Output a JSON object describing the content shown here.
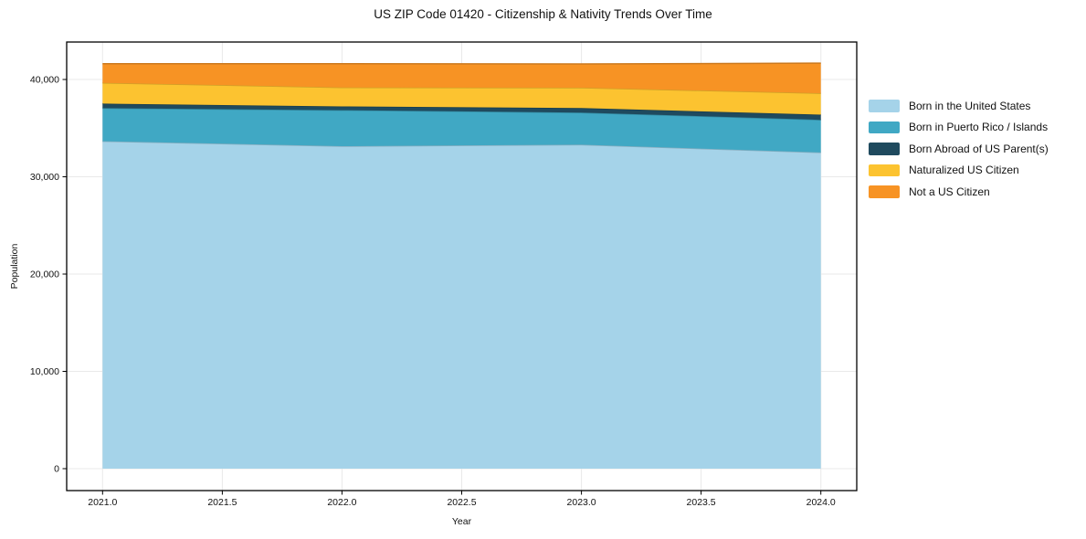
{
  "chart_data": {
    "type": "area",
    "stacked": true,
    "title": "US ZIP Code 01420 - Citizenship & Nativity Trends Over Time",
    "xlabel": "Year",
    "ylabel": "Population",
    "x": [
      2021,
      2022,
      2023,
      2024
    ],
    "series": [
      {
        "name": "Born in the United States",
        "color": "#a5d3e9",
        "values": [
          33650,
          33150,
          33300,
          32500
        ]
      },
      {
        "name": "Born in Puerto Rico / Islands",
        "color": "#40a8c4",
        "values": [
          3400,
          3700,
          3300,
          3350
        ]
      },
      {
        "name": "Born Abroad of US Parent(s)",
        "color": "#1f4a5e",
        "values": [
          470,
          380,
          460,
          540
        ]
      },
      {
        "name": "Naturalized US Citizen",
        "color": "#fcc330",
        "values": [
          2130,
          1950,
          2100,
          2190
        ]
      },
      {
        "name": "Not a US Citizen",
        "color": "#f79324",
        "values": [
          1970,
          2440,
          2440,
          3100
        ]
      }
    ],
    "xlim": [
      2020.85,
      2024.15
    ],
    "ylim": [
      -2250,
      43850
    ],
    "xticks": [
      2021.0,
      2021.5,
      2022.0,
      2022.5,
      2023.0,
      2023.5,
      2024.0
    ],
    "xtick_labels": [
      "2021.0",
      "2021.5",
      "2022.0",
      "2022.5",
      "2023.0",
      "2023.5",
      "2024.0"
    ],
    "yticks": [
      0,
      10000,
      20000,
      30000,
      40000
    ],
    "ytick_labels": [
      "0",
      "10,000",
      "20,000",
      "30,000",
      "40,000"
    ],
    "grid": true,
    "grid_color": "#e9e9e9",
    "axis_color": "#000000",
    "legend_position": "right of plot, no frame"
  }
}
